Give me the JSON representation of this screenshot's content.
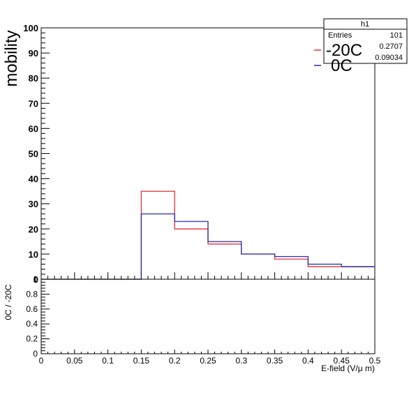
{
  "chart_data": [
    {
      "type": "step",
      "ylabel": "mobility",
      "xlim": [
        0,
        0.5
      ],
      "ylim": [
        0,
        100
      ],
      "y_ticks": [
        "0",
        "10",
        "20",
        "30",
        "40",
        "50",
        "60",
        "70",
        "80",
        "90",
        "100"
      ],
      "bin_edges": [
        0,
        0.05,
        0.1,
        0.15,
        0.2,
        0.25,
        0.3,
        0.35,
        0.4,
        0.45,
        0.5
      ],
      "series": [
        {
          "name": "-20C",
          "color": "#e0303a",
          "values": [
            0,
            0,
            0,
            35,
            20,
            14,
            10,
            8,
            5,
            5
          ]
        },
        {
          "name": "0C",
          "color": "#2a2aa8",
          "values": [
            0,
            0,
            0,
            26,
            23,
            15,
            10,
            9,
            6,
            5
          ]
        }
      ],
      "legend": {
        "placement": "top-right"
      },
      "stats_box": {
        "title": "h1",
        "rows": [
          {
            "label": "Entries",
            "value": "101"
          },
          {
            "label": "",
            "value": "0.2707"
          },
          {
            "label": "",
            "value": "0.09034"
          }
        ]
      }
    },
    {
      "type": "ratio",
      "ylabel": "0C / -20C",
      "xlabel": "E-field (V/μ m)",
      "xlim": [
        0,
        0.5
      ],
      "ylim": [
        0,
        1
      ],
      "y_ticks": [
        "0",
        "0.2",
        "0.4",
        "0.6",
        "0.8",
        "1"
      ],
      "x_ticks": [
        "0",
        "0.05",
        "0.1",
        "0.15",
        "0.2",
        "0.25",
        "0.3",
        "0.35",
        "0.4",
        "0.45",
        "0.5"
      ]
    }
  ]
}
